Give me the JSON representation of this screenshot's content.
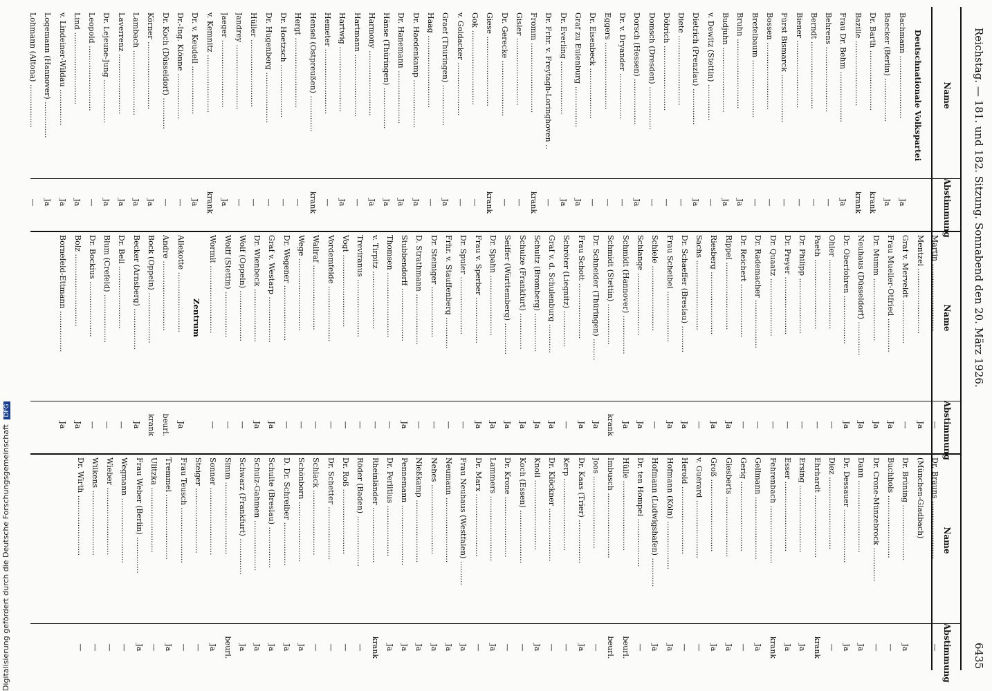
{
  "header": {
    "left": "Reichstag. — 181. und 182. Sitzung. Sonnabend den 20. März 1926.",
    "page_number": "6435"
  },
  "column_headers": {
    "name": "Name",
    "vote": "Abstimmung"
  },
  "side_note": {
    "text": "Digitalisierung gefördert durch die Deutsche Forschungsgemeinschaft",
    "logo": "DFG"
  },
  "columns": [
    {
      "sections": [
        {
          "title": "Deutschnationale Volkspartei",
          "rows": [
            [
              "Bachmann",
              "Ja"
            ],
            [
              "Baecker (Berlin)",
              "Ja"
            ],
            [
              "Dr. Barth",
              "krank"
            ],
            [
              "Bazille",
              "krank"
            ],
            [
              "Frau Dr. Behm",
              "Ja"
            ],
            [
              "Behrens",
              "—"
            ],
            [
              "Berndt",
              "—"
            ],
            [
              "Biener",
              "—"
            ],
            [
              "Fürst Bismarck",
              "—"
            ],
            [
              "Bossen",
              "—"
            ],
            [
              "Brefelbaum",
              "—"
            ],
            [
              "Bruhn",
              "Ja"
            ],
            [
              "Budjuhn",
              "Ja"
            ],
            [
              "v. Dewitz (Stettin)",
              "—"
            ],
            [
              "Dietrich (Prenzlau)",
              "Ja"
            ],
            [
              "Diete",
              "—"
            ],
            [
              "Döbrich",
              "—"
            ],
            [
              "Domsch (Dresden)",
              "—"
            ],
            [
              "Dorsch (Hessen)",
              "Ja"
            ],
            [
              "Dr. v. Dryander",
              "—"
            ],
            [
              "Eggers",
              "—"
            ],
            [
              "Dr. Eisenbeck",
              "—"
            ],
            [
              "Graf zu Eulenburg",
              "Ja"
            ],
            [
              "Dr. Everling",
              "Ja"
            ],
            [
              "Dr. Frhr. v. Freytagh-Loringhoven",
              "—"
            ],
            [
              "Fromm",
              "krank"
            ],
            [
              "Gisler",
              "—"
            ],
            [
              "Dr. Gerecke",
              "—"
            ],
            [
              "Giese",
              "krank"
            ],
            [
              "Gok",
              "—"
            ],
            [
              "v. Goldacker",
              "—"
            ],
            [
              "Graef (Thüringen)",
              "Ja"
            ],
            [
              "Haag",
              "—"
            ],
            [
              "Dr. Haedenkamp",
              "Ja"
            ],
            [
              "Dr. Hanemann",
              "Ja"
            ],
            [
              "Hänse (Thüringen)",
              "Ja"
            ],
            [
              "Harmony",
              "Ja"
            ],
            [
              "Hartmann",
              "—"
            ],
            [
              "Hartwig",
              "Ja"
            ],
            [
              "Hemeter",
              "—"
            ],
            [
              "Hensel (Ostpreußen)",
              "krank"
            ],
            [
              "Hergt",
              "—"
            ],
            [
              "Dr. Hoetzsch",
              "—"
            ],
            [
              "Dr. Hugenberg",
              "—"
            ],
            [
              "Hüller",
              "—"
            ],
            [
              "Jandrey",
              "—"
            ],
            [
              "Jaeger",
              "Ja"
            ],
            [
              "v. Kemnitz",
              "krank"
            ],
            [
              "Dr. v. Keudell",
              "Ja"
            ],
            [
              "Dr.-Ing. Klönne",
              "—"
            ],
            [
              "Dr. Koch (Düsseldorf)",
              "—"
            ],
            [
              "Körner",
              "Ja"
            ],
            [
              "Lambach",
              "Ja"
            ],
            [
              "Laverrenz",
              "Ja"
            ],
            [
              "Dr. Lejeune-Jung",
              "Ja"
            ],
            [
              "Leopold",
              "—"
            ],
            [
              "Lind",
              "Ja"
            ],
            [
              "v. Lindeiner-Wildau",
              "Ja"
            ],
            [
              "Logemann (Hannover)",
              "Ja"
            ],
            [
              "Lohmann (Altona)",
              "—"
            ]
          ]
        }
      ]
    },
    {
      "sections": [
        {
          "title": "",
          "rows": [
            [
              "Martin",
              "—"
            ],
            [
              "Mentzel",
              "Ja"
            ],
            [
              "Graf v. Merveldt",
              "—"
            ],
            [
              "Frau Mueller-Otfried",
              "Ja"
            ],
            [
              "Dr. Mumm",
              "Ja"
            ],
            [
              "Neuhaus (Düsseldorf)",
              "Ja"
            ],
            [
              "Dr. Oberfohren",
              "Ja"
            ],
            [
              "Ohler",
              "—"
            ],
            [
              "Paeth",
              "—"
            ],
            [
              "Dr. Philipp",
              "—"
            ],
            [
              "Dr. Preyer",
              "—"
            ],
            [
              "Dr. Quaatz",
              "—"
            ],
            [
              "Dr. Rademacher",
              "—"
            ],
            [
              "Dr. Reichert",
              "—"
            ],
            [
              "Rippel",
              "Ja"
            ],
            [
              "Riesberg",
              "Ja"
            ],
            [
              "Sachs",
              "—"
            ],
            [
              "Dr. Schaeffer (Breslau)",
              "Ja"
            ],
            [
              "Frau Scheibel",
              "Ja"
            ],
            [
              "Schiele",
              "—"
            ],
            [
              "Schlange",
              "Ja"
            ],
            [
              "Schmidt (Hannover)",
              "Ja"
            ],
            [
              "Schmidt (Stettin)",
              "krank"
            ],
            [
              "Dr. Schneider (Thüringen)",
              "Ja"
            ],
            [
              "Frau Schott",
              "Ja"
            ],
            [
              "Schröter (Liegnitz)",
              "—"
            ],
            [
              "Graf v. d. Schulenburg",
              "Ja"
            ],
            [
              "Schultz (Bromberg)",
              "Ja"
            ],
            [
              "Schulze (Frankfurt)",
              "Ja"
            ],
            [
              "Seiffer (Württemberg)",
              "Ja"
            ],
            [
              "Dr. Spahn",
              "Ja"
            ],
            [
              "Frau v. Sperber",
              "Ja"
            ],
            [
              "Dr. Spuler",
              "—"
            ],
            [
              "Frhr. v. Stauffenberg",
              "—"
            ],
            [
              "Dr. Steiniger",
              "—"
            ],
            [
              "D. Strathmann",
              "—"
            ],
            [
              "Stubbendorff",
              "Ja"
            ],
            [
              "Thomsen",
              "—"
            ],
            [
              "v. Tirpitz",
              "—"
            ],
            [
              "Treviranus",
              "—"
            ],
            [
              "Vogt",
              "—"
            ],
            [
              "Vordemfelde",
              "—"
            ],
            [
              "Wallraf",
              "—"
            ],
            [
              "Wege",
              "—"
            ],
            [
              "Dr. Wegener",
              "—"
            ],
            [
              "Graf v. Westarp",
              "Ja"
            ],
            [
              "Dr. Wienbeck",
              "Ja"
            ],
            [
              "Wolf (Oppeln)",
              "—"
            ],
            [
              "Wolff (Stettin)",
              "—"
            ],
            [
              "Wormit",
              "—"
            ]
          ]
        },
        {
          "title": "Zentrum",
          "rows": [
            [
              "Allekotte",
              "Ja"
            ],
            [
              "Andre",
              "beurl."
            ],
            [
              "Bock (Oppeln)",
              "krank"
            ],
            [
              "Becker (Arnsberg)",
              "Ja"
            ],
            [
              "Dr. Bell",
              "—"
            ],
            [
              "Blum (Crefeld)",
              "—"
            ],
            [
              "Dr. Bockius",
              "—"
            ],
            [
              "Bolz",
              "Ja"
            ],
            [
              "Bornefeld-Ettmann",
              "Ja"
            ]
          ]
        }
      ]
    },
    {
      "sections": [
        {
          "title": "",
          "rows": [
            [
              "Dr. Brauns",
              "—"
            ],
            [
              "(München-Gladbach)",
              ""
            ],
            [
              "Dr. Brüning",
              "Ja"
            ],
            [
              "Buchhols",
              "—"
            ],
            [
              "Dr. Crone-Münzebrock",
              "—"
            ],
            [
              "Dann",
              "Ja"
            ],
            [
              "Dr. Dessauer",
              "Ja"
            ],
            [
              "Diez",
              "—"
            ],
            [
              "Ehrhardt",
              "krank"
            ],
            [
              "Ersing",
              "Ja"
            ],
            [
              "Esser",
              "Ja"
            ],
            [
              "Fehrenbach",
              "krank"
            ],
            [
              "Gellmann",
              "Ja"
            ],
            [
              "Gerig",
              "—"
            ],
            [
              "Giesberts",
              "Ja"
            ],
            [
              "Groß",
              "Ja"
            ],
            [
              "v. Guérard",
              "—"
            ],
            [
              "Herold",
              "—"
            ],
            [
              "Hofmann (Köln)",
              "Ja"
            ],
            [
              "Hofmann (Ludwigshafen)",
              "Ja"
            ],
            [
              "Dr. ten Hompel",
              "—"
            ],
            [
              "Hülle",
              "beurl."
            ],
            [
              "Imbusch",
              "beurl."
            ],
            [
              "Joos",
              "—"
            ],
            [
              "Dr. Kaas (Trier)",
              "Ja"
            ],
            [
              "Kerp",
              "—"
            ],
            [
              "Dr. Klöckner",
              "—"
            ],
            [
              "Knoll",
              "Ja"
            ],
            [
              "Koch (Essen)",
              "—"
            ],
            [
              "Dr. Krone",
              "—"
            ],
            [
              "Lammers",
              "Ja"
            ],
            [
              "Dr. Marx",
              "—"
            ],
            [
              "Frau Neuhaus (Westfalen)",
              "Ja"
            ],
            [
              "Neumann",
              "Ja"
            ],
            [
              "Nehes",
              "Ja"
            ],
            [
              "Nießkamp",
              "Ja"
            ],
            [
              "Pennemann",
              "Ja"
            ],
            [
              "Dr. Perlitius",
              "Ja"
            ],
            [
              "Rheinländer",
              "krank"
            ],
            [
              "Röder (Baden)",
              "—"
            ],
            [
              "Dr. Roß",
              "—"
            ],
            [
              "Dr. Schetter",
              "—"
            ],
            [
              "Schlack",
              "—"
            ],
            [
              "Schönborn",
              "Ja"
            ],
            [
              "D. Dr. Schreiber",
              "Ja"
            ],
            [
              "Schulte (Breslau)",
              "Ja"
            ],
            [
              "Schulz-Gahmen",
              "Ja"
            ],
            [
              "Schwarz (Frankfurt)",
              "Ja"
            ],
            [
              "Simm",
              "beurl."
            ],
            [
              "Sonner",
              "Ja"
            ],
            [
              "Steiger",
              "—"
            ],
            [
              "Frau Teusch",
              "—"
            ],
            [
              "Tremmel",
              "Ja"
            ],
            [
              "Ulitzka",
              "—"
            ],
            [
              "Frau Weber (Berlin)",
              "Ja"
            ],
            [
              "Wegmann",
              "—"
            ],
            [
              "Wieber",
              "—"
            ],
            [
              "Wilkens",
              "—"
            ],
            [
              "Dr. Wirth",
              "—"
            ]
          ]
        }
      ]
    }
  ]
}
